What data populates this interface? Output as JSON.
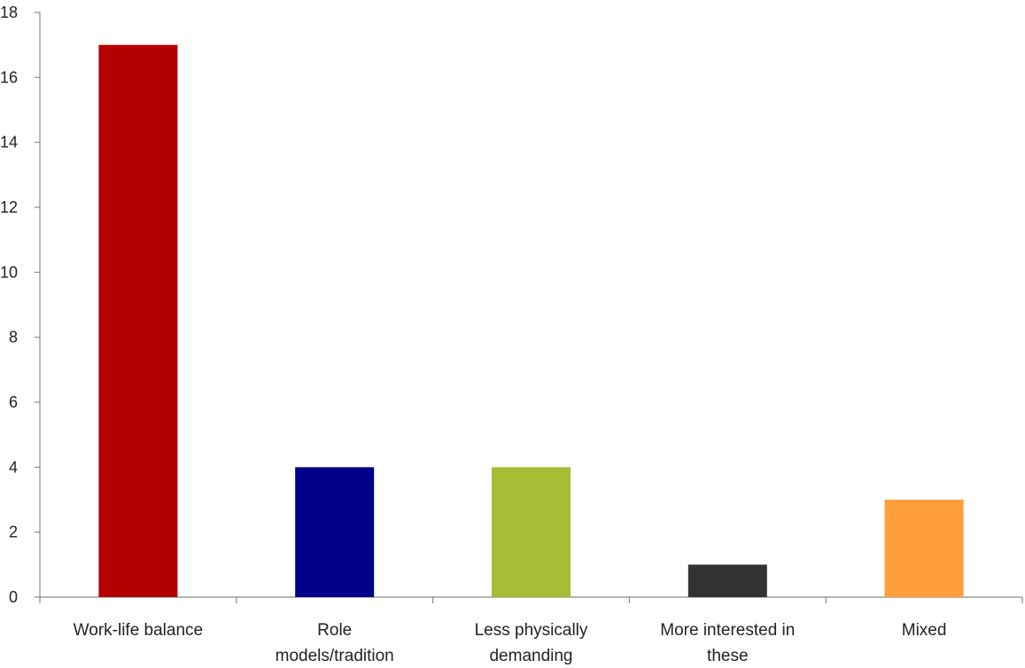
{
  "chart_data": {
    "type": "bar",
    "title": "",
    "xlabel": "",
    "ylabel": "",
    "categories": [
      "Work-life balance",
      "Role models/tradition",
      "Less physically demanding",
      "More interested in these",
      "Mixed"
    ],
    "category_label_lines": [
      [
        "Work-life balance"
      ],
      [
        "Role",
        "models/tradition"
      ],
      [
        "Less physically",
        "demanding"
      ],
      [
        "More interested in",
        "these"
      ],
      [
        "Mixed"
      ]
    ],
    "values": [
      17,
      4,
      4,
      1,
      3
    ],
    "colors": [
      "#B50000",
      "#00008B",
      "#A8BC35",
      "#333333",
      "#FF9E3A"
    ],
    "ylim": [
      0,
      18
    ],
    "yticks": [
      0,
      2,
      4,
      6,
      8,
      10,
      12,
      14,
      16,
      18
    ],
    "grid": false,
    "legend": "none"
  }
}
